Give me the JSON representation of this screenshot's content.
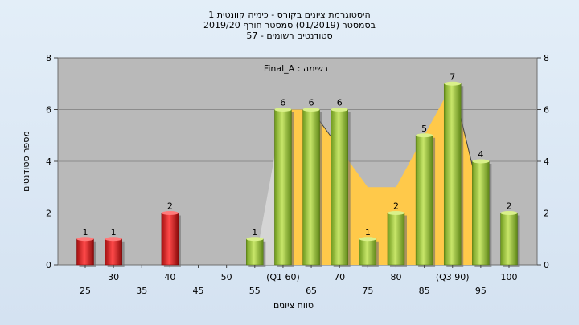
{
  "chart_data": {
    "type": "bar",
    "title_lines": [
      "היסטוגרמת ציונים בקורס - כימיה קוונטית 1",
      "בסמסטר  (01/2019)  סמסטר חורף 2019/20",
      "סטודנטים רשומים - 57"
    ],
    "annotation": "בשימה : Final_A",
    "xlabel": "טווח ציונים",
    "ylabel": "מספר סטודנטים",
    "ylim": [
      0,
      8
    ],
    "yticks": [
      0,
      2,
      4,
      6,
      8
    ],
    "grid": "horizontal",
    "x_tick_labels": [
      {
        "x": 25,
        "label": "25"
      },
      {
        "x": 30,
        "label": "30"
      },
      {
        "x": 35,
        "label": "35"
      },
      {
        "x": 40,
        "label": "40"
      },
      {
        "x": 45,
        "label": "45"
      },
      {
        "x": 50,
        "label": "50"
      },
      {
        "x": 55,
        "label": "55"
      },
      {
        "x": 60,
        "label": "(Q1 60)"
      },
      {
        "x": 65,
        "label": "65"
      },
      {
        "x": 70,
        "label": "70"
      },
      {
        "x": 75,
        "label": "75"
      },
      {
        "x": 80,
        "label": "80"
      },
      {
        "x": 85,
        "label": "85"
      },
      {
        "x": 90,
        "label": "(Q3 90)"
      },
      {
        "x": 95,
        "label": "95"
      },
      {
        "x": 100,
        "label": "100"
      }
    ],
    "bars": [
      {
        "x": 25,
        "value": 1,
        "color": "red"
      },
      {
        "x": 30,
        "value": 1,
        "color": "red"
      },
      {
        "x": 40,
        "value": 2,
        "color": "red"
      },
      {
        "x": 55,
        "value": 1,
        "color": "green"
      },
      {
        "x": 60,
        "value": 6,
        "color": "green"
      },
      {
        "x": 65,
        "value": 6,
        "color": "green"
      },
      {
        "x": 70,
        "value": 6,
        "color": "green"
      },
      {
        "x": 75,
        "value": 1,
        "color": "green"
      },
      {
        "x": 80,
        "value": 2,
        "color": "green"
      },
      {
        "x": 85,
        "value": 5,
        "color": "green"
      },
      {
        "x": 90,
        "value": 7,
        "color": "green"
      },
      {
        "x": 95,
        "value": 4,
        "color": "green"
      },
      {
        "x": 100,
        "value": 2,
        "color": "green"
      }
    ],
    "background_area_yellow": [
      {
        "x": 60,
        "y": 6
      },
      {
        "x": 65,
        "y": 6
      },
      {
        "x": 70,
        "y": 4.5
      },
      {
        "x": 75,
        "y": 3
      },
      {
        "x": 80,
        "y": 3
      },
      {
        "x": 85,
        "y": 5
      },
      {
        "x": 90,
        "y": 7
      },
      {
        "x": 95,
        "y": 2.5
      }
    ],
    "background_area_gray": [
      {
        "x": 55,
        "y": 0
      },
      {
        "x": 60,
        "y": 6
      }
    ],
    "colors": {
      "plot_bg": "#b9b9b9",
      "gridline": "#8c8c8c",
      "yellow_area": "#ffc94a",
      "gray_area": "#d8d8d8",
      "red_bar": "#d92a2a",
      "green_bar": "#9dc23c"
    }
  }
}
